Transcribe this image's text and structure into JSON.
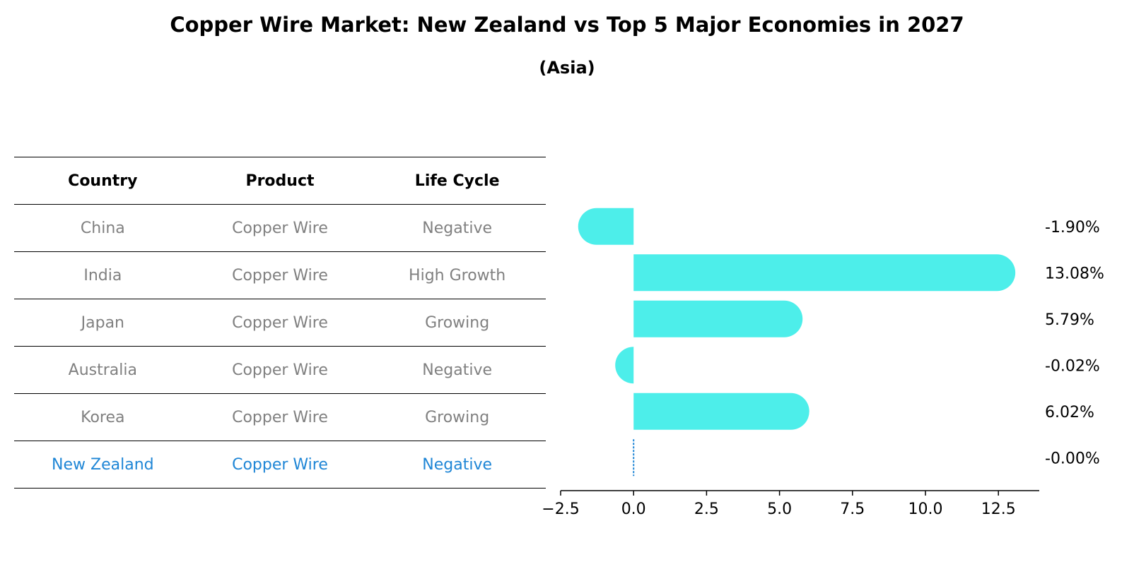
{
  "title": "Copper Wire Market: New Zealand vs Top 5 Major Economies in 2027",
  "subtitle": "(Asia)",
  "colors": {
    "bar": "#4deeea",
    "highlight": "#1f86d6",
    "muted": "#808080"
  },
  "table": {
    "headers": [
      "Country",
      "Product",
      "Life Cycle"
    ],
    "rows": [
      [
        "China",
        "Copper Wire",
        "Negative"
      ],
      [
        "India",
        "Copper Wire",
        "High Growth"
      ],
      [
        "Japan",
        "Copper Wire",
        "Growing"
      ],
      [
        "Australia",
        "Copper Wire",
        "Negative"
      ],
      [
        "Korea",
        "Copper Wire",
        "Growing"
      ],
      [
        "New Zealand",
        "Copper Wire",
        "Negative"
      ]
    ],
    "highlight_row": "New Zealand"
  },
  "chart_data": {
    "type": "bar",
    "orientation": "horizontal",
    "categories": [
      "China",
      "India",
      "Japan",
      "Australia",
      "Korea",
      "New Zealand"
    ],
    "values": [
      -1.9,
      13.08,
      5.79,
      -0.02,
      6.02,
      -0.0
    ],
    "data_labels": [
      "-1.90%",
      "13.08%",
      "5.79%",
      "-0.02%",
      "6.02%",
      "-0.00%"
    ],
    "xlim": [
      -2.5,
      13.9
    ],
    "xticks": [
      -2.5,
      0.0,
      2.5,
      5.0,
      7.5,
      10.0,
      12.5
    ],
    "xtick_labels": [
      "−2.5",
      "0.0",
      "2.5",
      "5.0",
      "7.5",
      "10.0",
      "12.5"
    ],
    "xlabel": "",
    "ylabel": "",
    "grid": false
  }
}
